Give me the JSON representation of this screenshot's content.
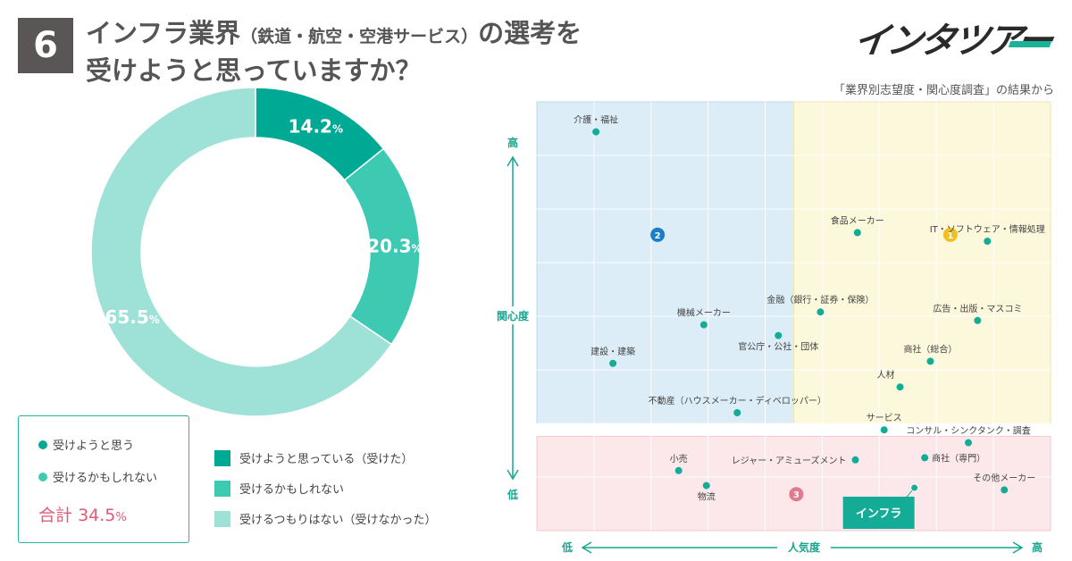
{
  "header": {
    "number": "6",
    "title_line1_main": "インフラ業界",
    "title_line1_sub": "（鉄道・航空・空港サービス）",
    "title_line1_end": "の選考を",
    "title_line2": "受けようと思っていますか？",
    "brand": "インタツアー",
    "source": "「業界別志望度・関心度調査」の結果から"
  },
  "colors": {
    "dark_teal": "#00a994",
    "mid_teal": "#3ec9b3",
    "light_teal": "#9ee2d7",
    "point": "#14ac96",
    "blue_zone": "#dcedf8",
    "yellow_zone": "#fbf8dc",
    "pink_zone": "#fce8ea",
    "accent_pink": "#e05a78"
  },
  "legend_box": {
    "item1": "受けようと思う",
    "item2": "受けるかもしれない",
    "total_label": "合計",
    "total_value": "34.5",
    "total_unit": "%"
  },
  "legend": [
    {
      "label": "受けようと思っている（受けた）"
    },
    {
      "label": "受けるかもしれない"
    },
    {
      "label": "受けるつもりはない（受けなかった）"
    }
  ],
  "chart_data": [
    {
      "type": "pie",
      "variant": "donut",
      "title": "インフラ業界（鉄道・航空・空港サービス）の選考を受けようと思っていますか？",
      "categories": [
        "受けようと思っている（受けた）",
        "受けるかもしれない",
        "受けるつもりはない（受けなかった）"
      ],
      "values": [
        14.2,
        20.3,
        65.5
      ],
      "labels": [
        "14.2",
        "20.3",
        "65.5"
      ],
      "unit": "%"
    },
    {
      "type": "scatter",
      "title": "「業界別志望度・関心度調査」の結果から",
      "xlabel": "人気度",
      "ylabel": "関心度",
      "x_low": "低",
      "x_high": "高",
      "y_low": "低",
      "y_high": "高",
      "xlim": [
        0,
        100
      ],
      "ylim": [
        0,
        100
      ],
      "zones": [
        {
          "id": "2",
          "name": "blue",
          "x": [
            0,
            50
          ],
          "y": [
            25,
            100
          ]
        },
        {
          "id": "1",
          "name": "yellow",
          "x": [
            50,
            100
          ],
          "y": [
            25,
            100
          ]
        },
        {
          "id": "3",
          "name": "pink",
          "x": [
            0,
            100
          ],
          "y": [
            0,
            22
          ]
        }
      ],
      "points": [
        {
          "label": "介護・福祉",
          "x": 11.5,
          "y": 93,
          "anchor": "top"
        },
        {
          "label": "食品メーカー",
          "x": 62.4,
          "y": 69.5,
          "anchor": "top"
        },
        {
          "label": "IT・ソフトウェア・情報処理",
          "x": 87.7,
          "y": 67.5,
          "anchor": "top"
        },
        {
          "label": "金融（銀行・証券・保険）",
          "x": 55.2,
          "y": 51,
          "anchor": "top"
        },
        {
          "label": "広告・出版・マスコミ",
          "x": 85.8,
          "y": 49,
          "anchor": "top"
        },
        {
          "label": "機械メーカー",
          "x": 32.5,
          "y": 48,
          "anchor": "top"
        },
        {
          "label": "官公庁・公社・団体",
          "x": 47.0,
          "y": 45.5,
          "anchor": "bottom"
        },
        {
          "label": "商社（総合）",
          "x": 76.6,
          "y": 39.5,
          "anchor": "top"
        },
        {
          "label": "建設・建築",
          "x": 14.8,
          "y": 39,
          "anchor": "top"
        },
        {
          "label": "人材",
          "x": 70.7,
          "y": 33.5,
          "anchor": "top-left"
        },
        {
          "label": "不動産（ハウスメーカー・ディベロッパー）",
          "x": 39.0,
          "y": 27.5,
          "anchor": "top"
        },
        {
          "label": "サービス",
          "x": 67.6,
          "y": 23.5,
          "anchor": "top"
        },
        {
          "label": "コンサル・シンクタンク・調査",
          "x": 84.0,
          "y": 20.5,
          "anchor": "top"
        },
        {
          "label": "商社（専門）",
          "x": 75.5,
          "y": 17,
          "anchor": "right"
        },
        {
          "label": "レジャー・アミューズメント",
          "x": 62.0,
          "y": 16.5,
          "anchor": "left"
        },
        {
          "label": "小売",
          "x": 27.6,
          "y": 14,
          "anchor": "top"
        },
        {
          "label": "物流",
          "x": 33.0,
          "y": 10.5,
          "anchor": "bottom"
        },
        {
          "label": "その他メーカー",
          "x": 91.0,
          "y": 9.5,
          "anchor": "top"
        },
        {
          "label": "インフラ",
          "x": 73.5,
          "y": 10,
          "anchor": "callout"
        }
      ]
    }
  ]
}
